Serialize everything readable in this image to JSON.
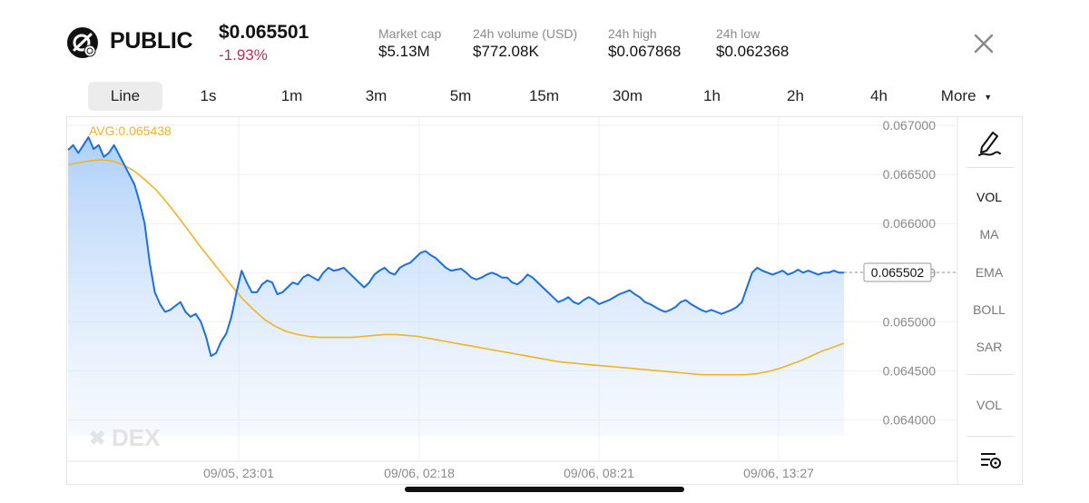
{
  "header": {
    "token_name": "PUBLIC",
    "price": "$0.065501",
    "change": "-1.93%",
    "stats": [
      {
        "label": "Market cap",
        "value": "$5.13M"
      },
      {
        "label": "24h volume (USD)",
        "value": "$772.08K"
      },
      {
        "label": "24h high",
        "value": "$0.067868"
      },
      {
        "label": "24h low",
        "value": "$0.062368"
      }
    ]
  },
  "tabs": [
    "Line",
    "1s",
    "1m",
    "3m",
    "5m",
    "15m",
    "30m",
    "1h",
    "2h",
    "4h",
    "More"
  ],
  "active_tab": "Line",
  "side_toolbar": {
    "items": [
      "VOL",
      "MA",
      "EMA",
      "BOLL",
      "SAR",
      "VOL"
    ]
  },
  "colors": {
    "line": "#1b6fe0",
    "avg_line": "#f0b323",
    "area_top": "#a9cdf8",
    "negative": "#b3305a"
  },
  "chart_data": {
    "type": "area",
    "avg_label": "AVG:0.065438",
    "current_value_label": "0.065502",
    "watermark": "DEX",
    "y_ticks": [
      "0.067000",
      "0.066500",
      "0.066000",
      "0.065500",
      "0.065000",
      "0.064500",
      "0.064000"
    ],
    "ylim": [
      0.0638,
      0.06702
    ],
    "x_ticks": [
      "09/05, 23:01",
      "09/06, 02:18",
      "09/06, 08:21",
      "09/06, 13:27"
    ],
    "grid": true,
    "series": [
      {
        "values": [
          0.06675,
          0.0668,
          0.06672,
          0.0668,
          0.06688,
          0.06676,
          0.0668,
          0.06668,
          0.06672,
          0.0668,
          0.0667,
          0.0666,
          0.0665,
          0.0664,
          0.06622,
          0.066,
          0.0656,
          0.0653,
          0.06518,
          0.0651,
          0.06512,
          0.06516,
          0.0652,
          0.0651,
          0.06505,
          0.06508,
          0.065,
          0.06485,
          0.06465,
          0.06468,
          0.0648,
          0.06488,
          0.06505,
          0.0653,
          0.06552,
          0.0654,
          0.0653,
          0.0653,
          0.06538,
          0.06542,
          0.0654,
          0.06528,
          0.0653,
          0.06535,
          0.0654,
          0.06538,
          0.06545,
          0.06548,
          0.06545,
          0.06542,
          0.0655,
          0.06555,
          0.06552,
          0.06553,
          0.06555,
          0.0655,
          0.06545,
          0.0654,
          0.06535,
          0.0654,
          0.06548,
          0.06552,
          0.06555,
          0.0655,
          0.06548,
          0.06555,
          0.06558,
          0.0656,
          0.06565,
          0.0657,
          0.06572,
          0.06568,
          0.06565,
          0.0656,
          0.06555,
          0.06552,
          0.06553,
          0.06554,
          0.0655,
          0.06545,
          0.06543,
          0.06545,
          0.06548,
          0.0655,
          0.06548,
          0.06545,
          0.06545,
          0.0654,
          0.06538,
          0.06542,
          0.06548,
          0.06545,
          0.0654,
          0.06535,
          0.0653,
          0.06525,
          0.0652,
          0.06522,
          0.06525,
          0.0652,
          0.06518,
          0.06522,
          0.06525,
          0.06522,
          0.06518,
          0.0652,
          0.06522,
          0.06525,
          0.06528,
          0.0653,
          0.06532,
          0.06528,
          0.06525,
          0.0652,
          0.06518,
          0.06515,
          0.06512,
          0.0651,
          0.06512,
          0.06515,
          0.0652,
          0.06522,
          0.06518,
          0.06515,
          0.06512,
          0.0651,
          0.06512,
          0.0651,
          0.06508,
          0.0651,
          0.06512,
          0.06515,
          0.0652,
          0.06535,
          0.0655,
          0.06555,
          0.06552,
          0.0655,
          0.06548,
          0.0655,
          0.06552,
          0.06548,
          0.0655,
          0.06553,
          0.0655,
          0.06552,
          0.0655,
          0.06548,
          0.0655,
          0.0655,
          0.06552,
          0.0655,
          0.0655
        ],
        "avg_values": [
          0.0666,
          0.06662,
          0.06664,
          0.06665,
          0.06664,
          0.0666,
          0.06654,
          0.06645,
          0.06635,
          0.06622,
          0.06608,
          0.06593,
          0.06578,
          0.06564,
          0.0655,
          0.06536,
          0.06523,
          0.06512,
          0.06502,
          0.06495,
          0.0649,
          0.06487,
          0.06485,
          0.06484,
          0.06484,
          0.06484,
          0.06484,
          0.06485,
          0.06486,
          0.06487,
          0.06487,
          0.06486,
          0.06485,
          0.06483,
          0.06481,
          0.06479,
          0.06477,
          0.06475,
          0.06473,
          0.06471,
          0.06469,
          0.06467,
          0.06465,
          0.06463,
          0.06461,
          0.06459,
          0.06458,
          0.06457,
          0.06456,
          0.06455,
          0.06454,
          0.06453,
          0.06452,
          0.06451,
          0.0645,
          0.06449,
          0.06448,
          0.06447,
          0.06446,
          0.06446,
          0.06446,
          0.06446,
          0.06446,
          0.06447,
          0.06449,
          0.06452,
          0.06456,
          0.0646,
          0.06465,
          0.0647,
          0.06474,
          0.06478
        ]
      }
    ]
  }
}
